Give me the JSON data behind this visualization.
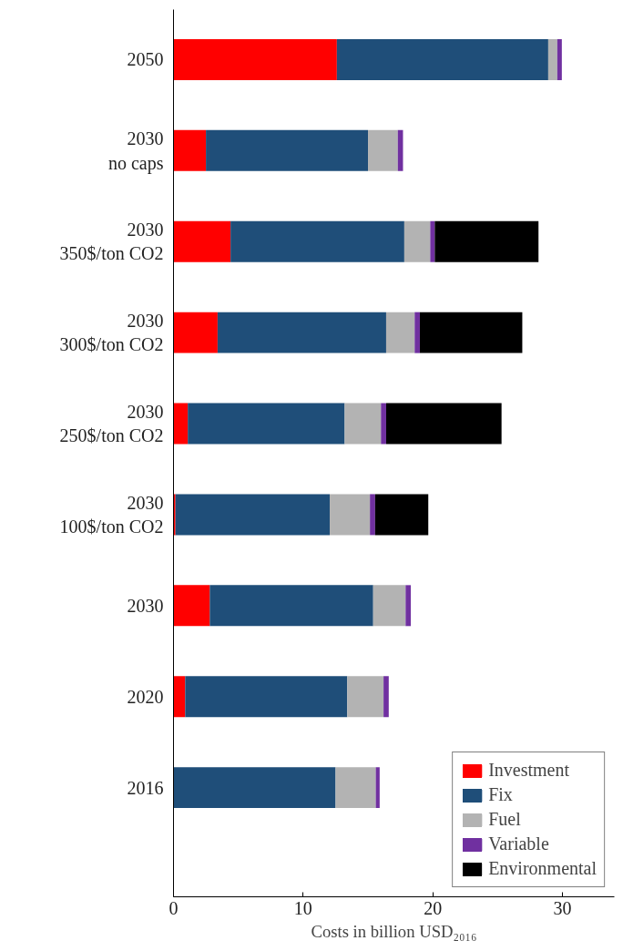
{
  "chart_data": {
    "type": "bar",
    "orientation": "horizontal",
    "stacked": true,
    "xlabel": "Costs in billion USD₂₀₁₆",
    "categories": [
      "2050",
      "2030\nno caps",
      "2030\n350$/ton CO2",
      "2030\n300$/ton CO2",
      "2030\n250$/ton CO2",
      "2030\n100$/ton CO2",
      "2030",
      "2020",
      "2016"
    ],
    "series": [
      {
        "name": "Investment",
        "color": "#ff0000",
        "values": [
          12.6,
          2.5,
          4.4,
          3.4,
          1.1,
          0.15,
          2.8,
          0.9,
          0
        ]
      },
      {
        "name": "Fix",
        "color": "#1f4e79",
        "values": [
          16.3,
          12.5,
          13.4,
          13.0,
          12.1,
          11.9,
          12.6,
          12.5,
          12.5
        ]
      },
      {
        "name": "Fuel",
        "color": "#b3b3b3",
        "values": [
          0.7,
          2.3,
          2.0,
          2.2,
          2.8,
          3.1,
          2.5,
          2.8,
          3.1
        ]
      },
      {
        "name": "Variable",
        "color": "#7030a0",
        "values": [
          0.35,
          0.4,
          0.35,
          0.4,
          0.4,
          0.4,
          0.4,
          0.4,
          0.3
        ]
      },
      {
        "name": "Environmental",
        "color": "#000000",
        "values": [
          0,
          0,
          8.0,
          7.9,
          8.9,
          4.1,
          0,
          0,
          0
        ]
      }
    ],
    "xlim": [
      0,
      34
    ],
    "xticks": [
      0,
      10,
      20,
      30
    ],
    "grid": false,
    "legend": "bottom right"
  }
}
